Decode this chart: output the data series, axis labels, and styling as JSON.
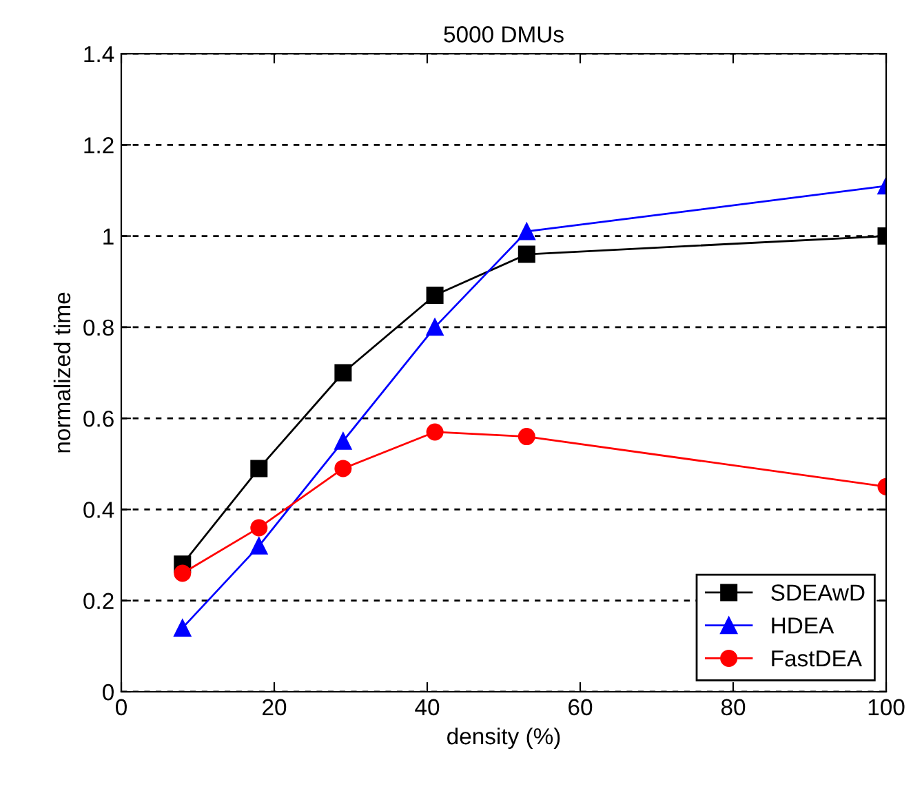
{
  "chart_data": {
    "type": "line",
    "title": "5000 DMUs",
    "xlabel": "density (%)",
    "ylabel": "normalized time",
    "x": [
      8,
      18,
      29,
      41,
      53,
      100
    ],
    "series": [
      {
        "name": "SDEAwD",
        "color": "#000000",
        "marker": "square",
        "values": [
          0.28,
          0.49,
          0.7,
          0.87,
          0.96,
          1.0
        ]
      },
      {
        "name": "HDEA",
        "color": "#0000ff",
        "marker": "triangle",
        "values": [
          0.14,
          0.32,
          0.55,
          0.8,
          1.01,
          1.11
        ]
      },
      {
        "name": "FastDEA",
        "color": "#ff0000",
        "marker": "circle",
        "values": [
          0.26,
          0.36,
          0.49,
          0.57,
          0.56,
          0.45
        ]
      }
    ],
    "xlim": [
      0,
      100
    ],
    "xticks": [
      0,
      20,
      40,
      60,
      80,
      100
    ],
    "ylim": [
      0,
      1.4
    ],
    "yticks": [
      0,
      0.2,
      0.4,
      0.6,
      0.8,
      1,
      1.2,
      1.4
    ],
    "grid": "y",
    "legend": "bottom right",
    "line_style": "solid"
  }
}
